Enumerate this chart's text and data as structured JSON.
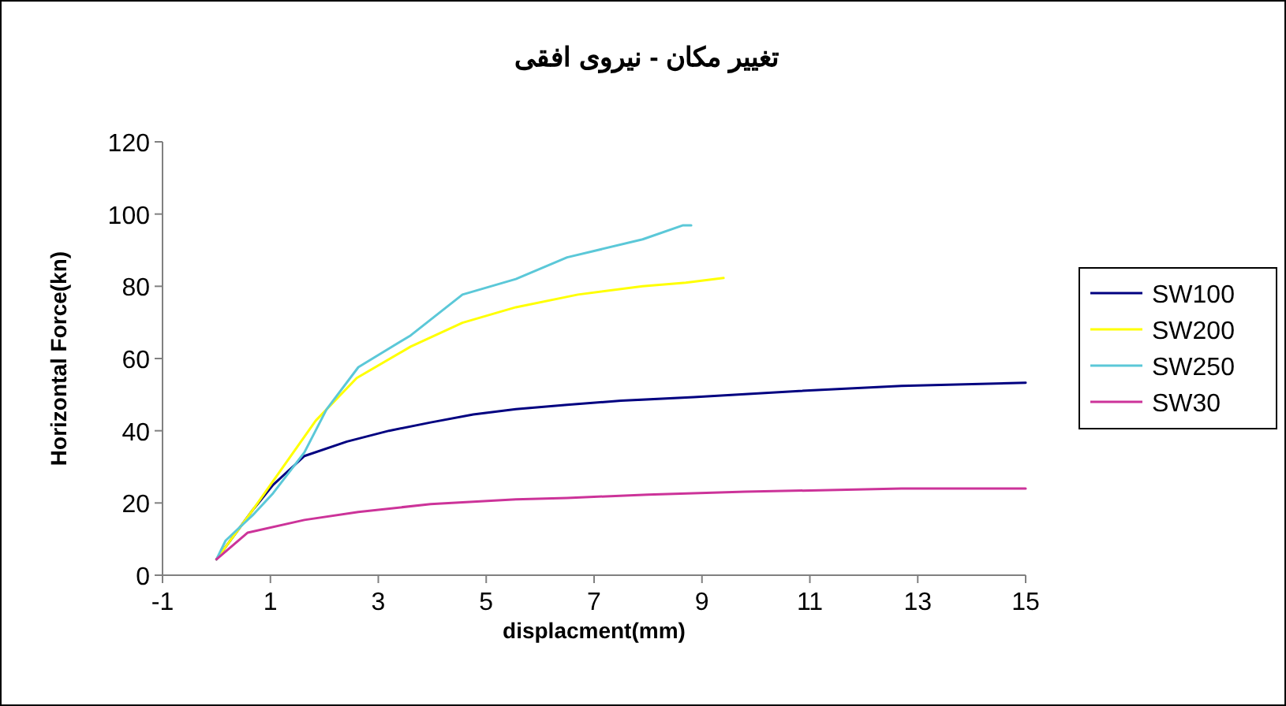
{
  "chart_data": {
    "type": "line",
    "title": "تغییر مکان - نیروی افقی",
    "xlabel": "displacment(mm)",
    "ylabel": "Horizontal Force(kn)",
    "xlim": [
      -1,
      15
    ],
    "xticks": [
      -1,
      1,
      3,
      5,
      7,
      9,
      11,
      13,
      15
    ],
    "ylim": [
      0,
      120
    ],
    "yticks": [
      0,
      20,
      40,
      60,
      80,
      100,
      120
    ],
    "legend": "right",
    "grid": false,
    "marker": "none",
    "series": [
      {
        "name": "SW100",
        "color": "#000080",
        "x": [
          0,
          0.67,
          1.05,
          1.63,
          2.42,
          3.2,
          3.97,
          4.76,
          5.55,
          6.5,
          7.5,
          8.85,
          10.8,
          12.7,
          15
        ],
        "values": [
          4.4,
          18,
          25,
          33,
          37,
          40,
          42.3,
          44.5,
          46,
          47.2,
          48.3,
          49.3,
          51,
          52.4,
          53.3
        ]
      },
      {
        "name": "SW200",
        "color": "#ffff00",
        "x": [
          0,
          0.67,
          1.16,
          1.84,
          2.6,
          3.6,
          4.56,
          5.55,
          6.7,
          7.9,
          8.7,
          9.4
        ],
        "values": [
          4.4,
          18,
          28.4,
          42.8,
          54.6,
          63.3,
          69.9,
          74.2,
          77.7,
          80,
          81,
          82.3
        ]
      },
      {
        "name": "SW250",
        "color": "#5bc8d8",
        "x": [
          0,
          0.17,
          0.67,
          1.05,
          1.63,
          2.04,
          2.63,
          3.6,
          4.56,
          5.55,
          6.5,
          7.9,
          8.65,
          8.8
        ],
        "values": [
          4.4,
          9.6,
          16.6,
          22.7,
          34,
          45.9,
          57.6,
          66.4,
          77.7,
          82,
          88,
          93,
          96.9,
          96.9
        ]
      },
      {
        "name": "SW30",
        "color": "#cc3399",
        "x": [
          0,
          0.58,
          1.63,
          2.63,
          3.97,
          5.55,
          6.5,
          8,
          9.8,
          12.7,
          15
        ],
        "values": [
          4.4,
          11.8,
          15.3,
          17.5,
          19.7,
          21,
          21.4,
          22.3,
          23.1,
          24,
          24
        ]
      }
    ]
  }
}
